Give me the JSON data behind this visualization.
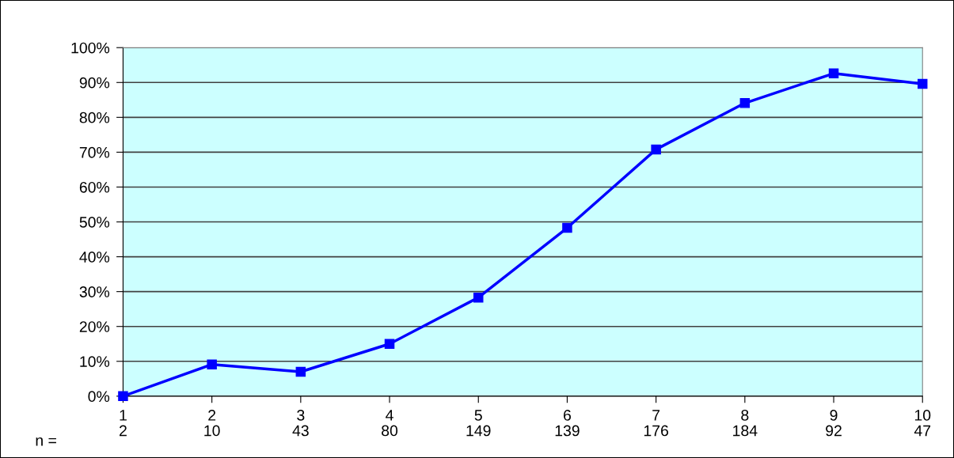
{
  "chart_data": {
    "type": "line",
    "categories": [
      "1\n2",
      "2\n10",
      "3\n43",
      "4\n80",
      "5\n149",
      "6\n139",
      "7\n176",
      "8\n184",
      "9\n92",
      "10\n47"
    ],
    "series": [
      {
        "color": "#0000ff",
        "values": [
          0,
          9.1,
          7.0,
          15.0,
          28.3,
          48.3,
          70.8,
          84.1,
          92.6,
          89.6
        ]
      }
    ],
    "ylim": [
      0,
      100
    ],
    "yticks": [
      {
        "value": 0,
        "label": "0%"
      },
      {
        "value": 10,
        "label": "10%"
      },
      {
        "value": 20,
        "label": "20%"
      },
      {
        "value": 30,
        "label": "30%"
      },
      {
        "value": 40,
        "label": "40%"
      },
      {
        "value": 50,
        "label": "50%"
      },
      {
        "value": 60,
        "label": "60%"
      },
      {
        "value": 70,
        "label": "70%"
      },
      {
        "value": 80,
        "label": "80%"
      },
      {
        "value": 90,
        "label": "90%"
      },
      {
        "value": 100,
        "label": "100%"
      }
    ],
    "annotations": [
      "n ="
    ],
    "grid": "y",
    "marker": "square",
    "line_style": "solid",
    "legend": false
  }
}
